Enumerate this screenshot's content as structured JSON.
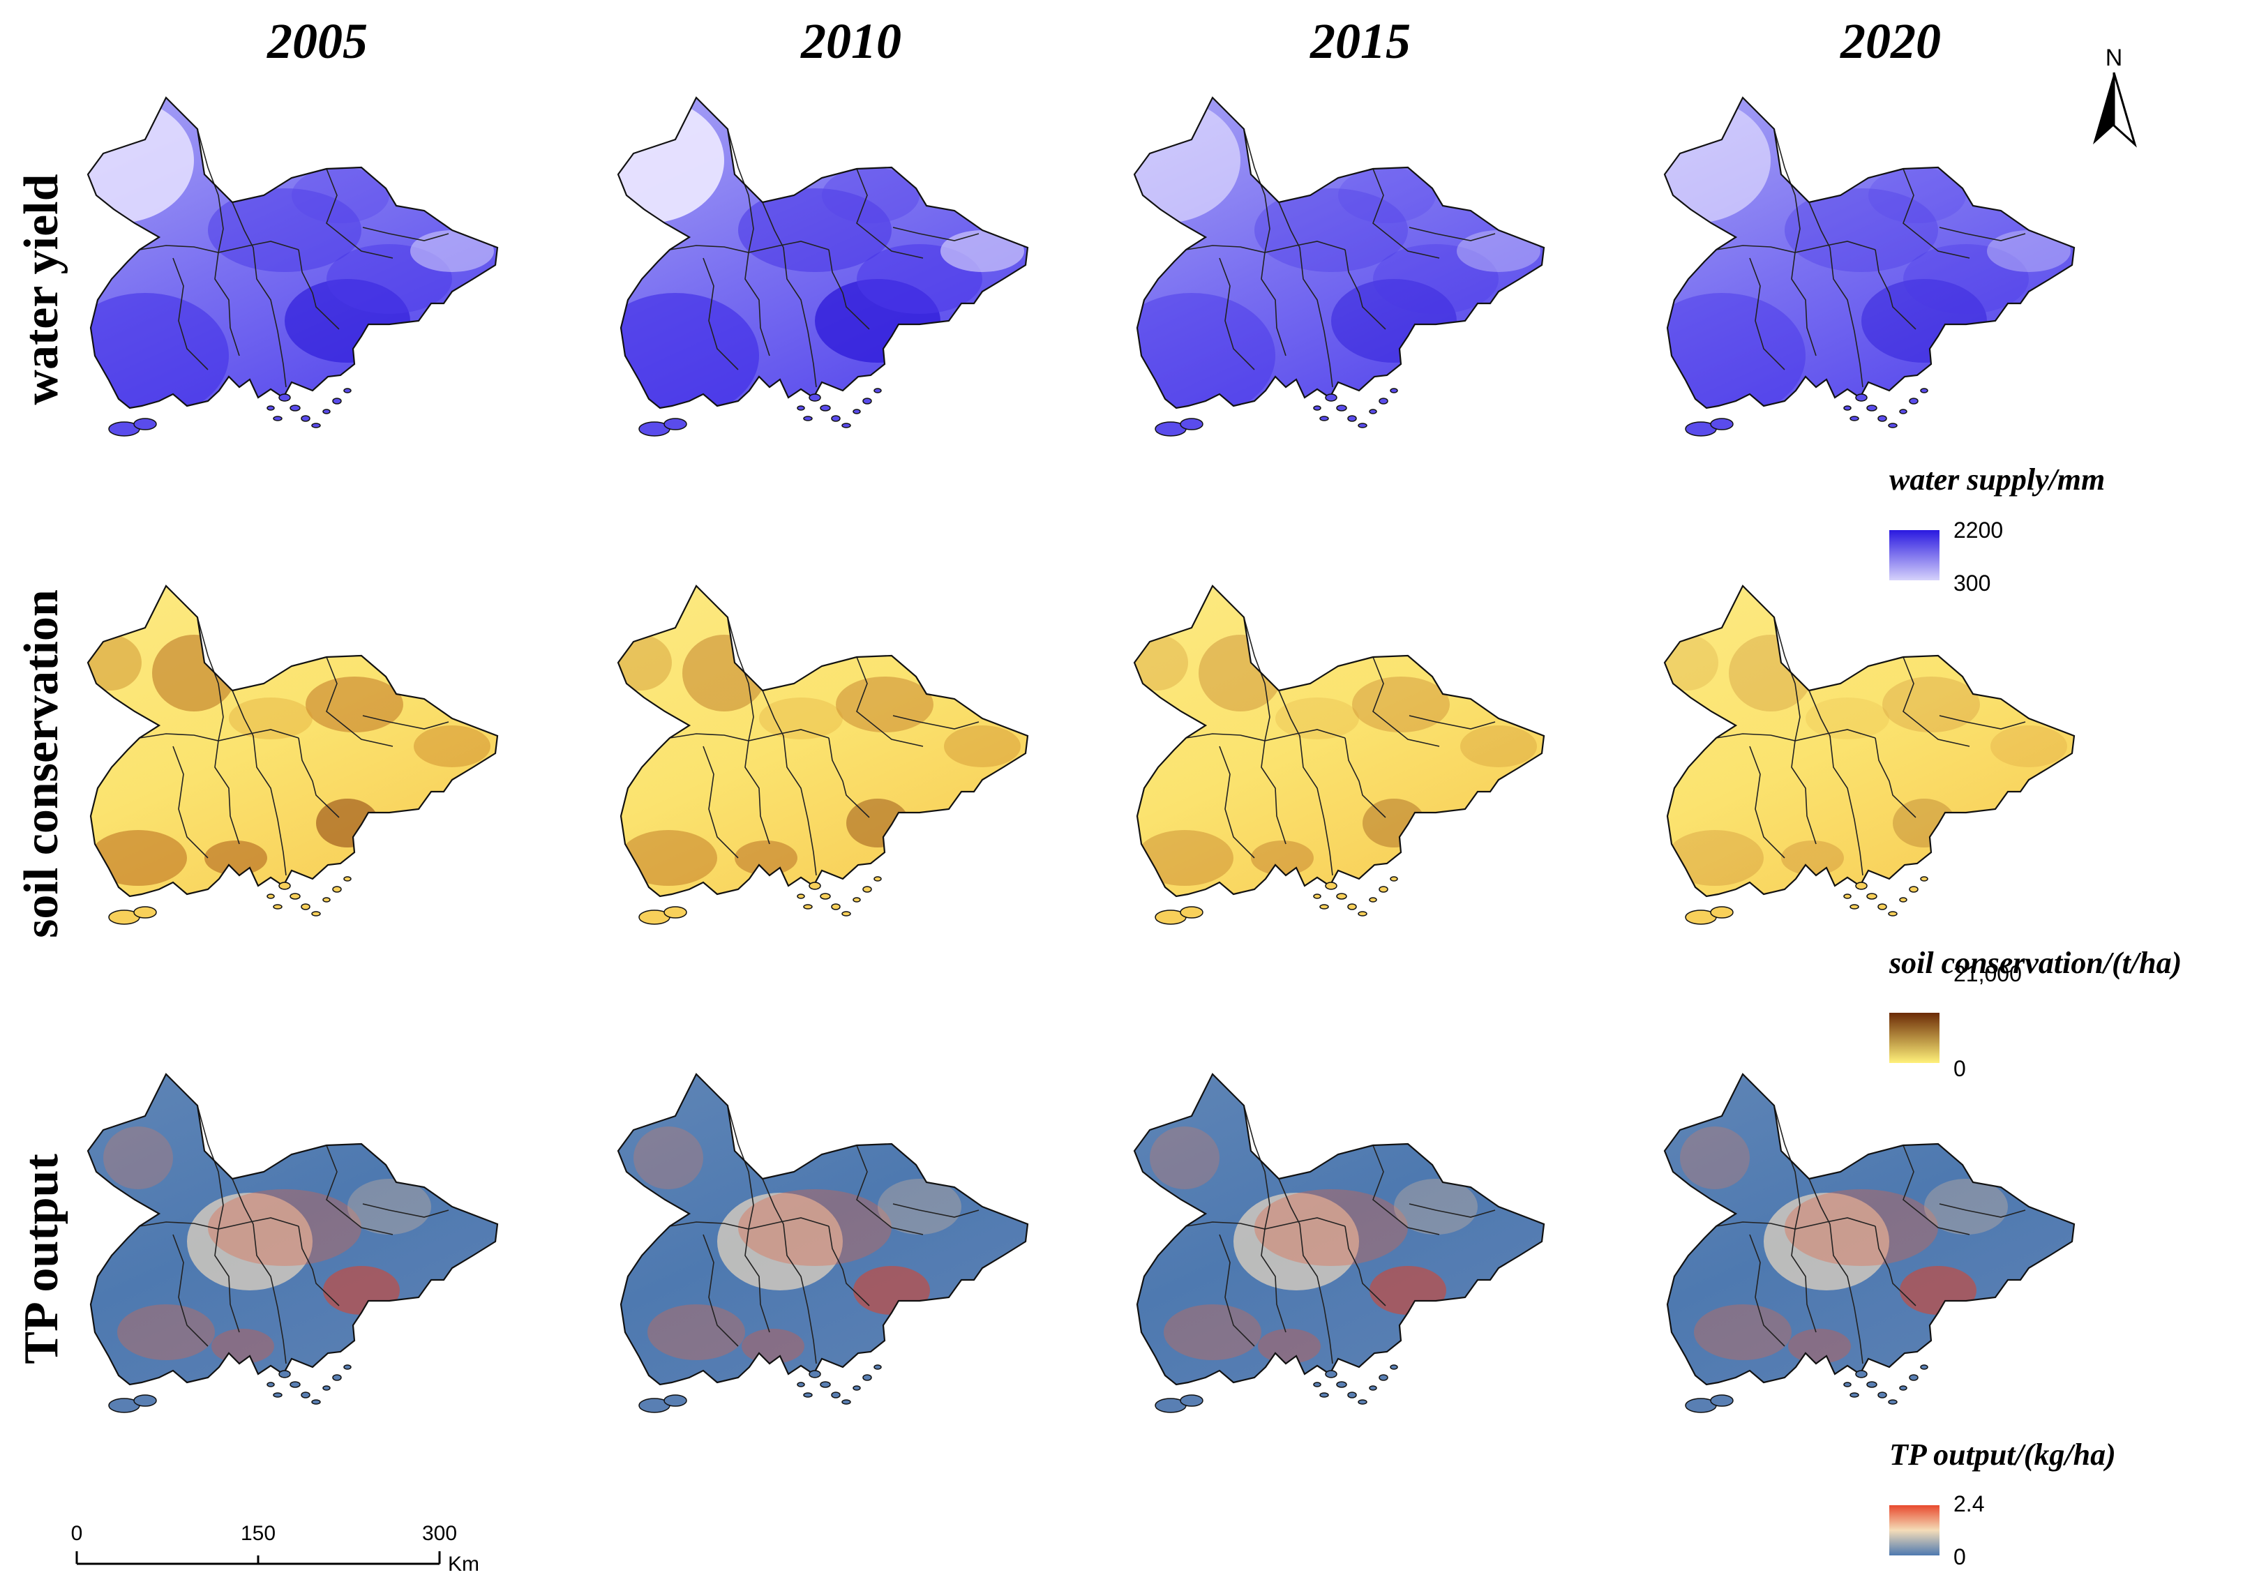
{
  "years": [
    "2005",
    "2010",
    "2015",
    "2020"
  ],
  "rows": [
    {
      "key": "water",
      "label": "water yield"
    },
    {
      "key": "soil",
      "label": "soil conservation"
    },
    {
      "key": "tp",
      "label": "TP output"
    }
  ],
  "legends": {
    "water": {
      "title": "water supply/mm",
      "max": "2200",
      "min": "300",
      "color_low": "#d6d2fb",
      "color_high": "#2a19e0"
    },
    "soil": {
      "title": "soil conservation/(t/ha)",
      "max": "21,000",
      "min": "0",
      "color_low": "#fff17a",
      "color_high": "#6b2a06"
    },
    "tp": {
      "title": "TP output/(kg/ha)",
      "max": "2.4",
      "min": "0",
      "color_low": "#4e79b0",
      "color_mid": "#f4dcb8",
      "color_high": "#e84a2e"
    }
  },
  "north_arrow": {
    "label": "N"
  },
  "scale_bar": {
    "ticks": [
      "0",
      "150",
      "300"
    ],
    "unit": "Km"
  }
}
